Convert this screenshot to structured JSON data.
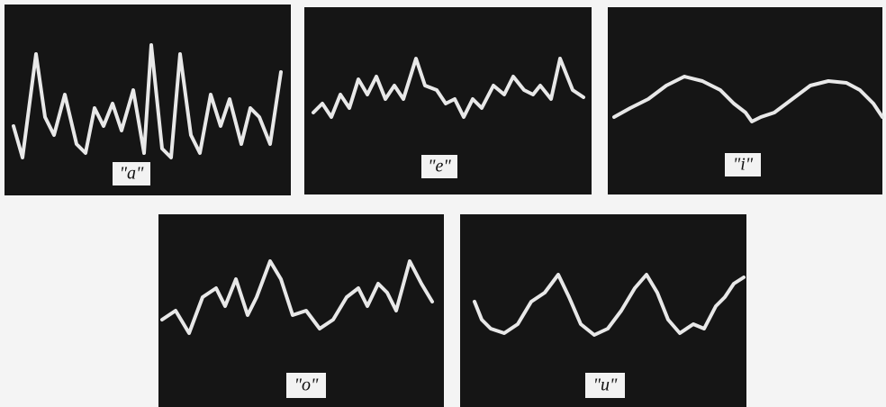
{
  "panels": [
    {
      "label": "\"a\""
    },
    {
      "label": "\"e\""
    },
    {
      "label": "\"i\""
    },
    {
      "label": "\"o\""
    },
    {
      "label": "\"u\""
    }
  ]
}
